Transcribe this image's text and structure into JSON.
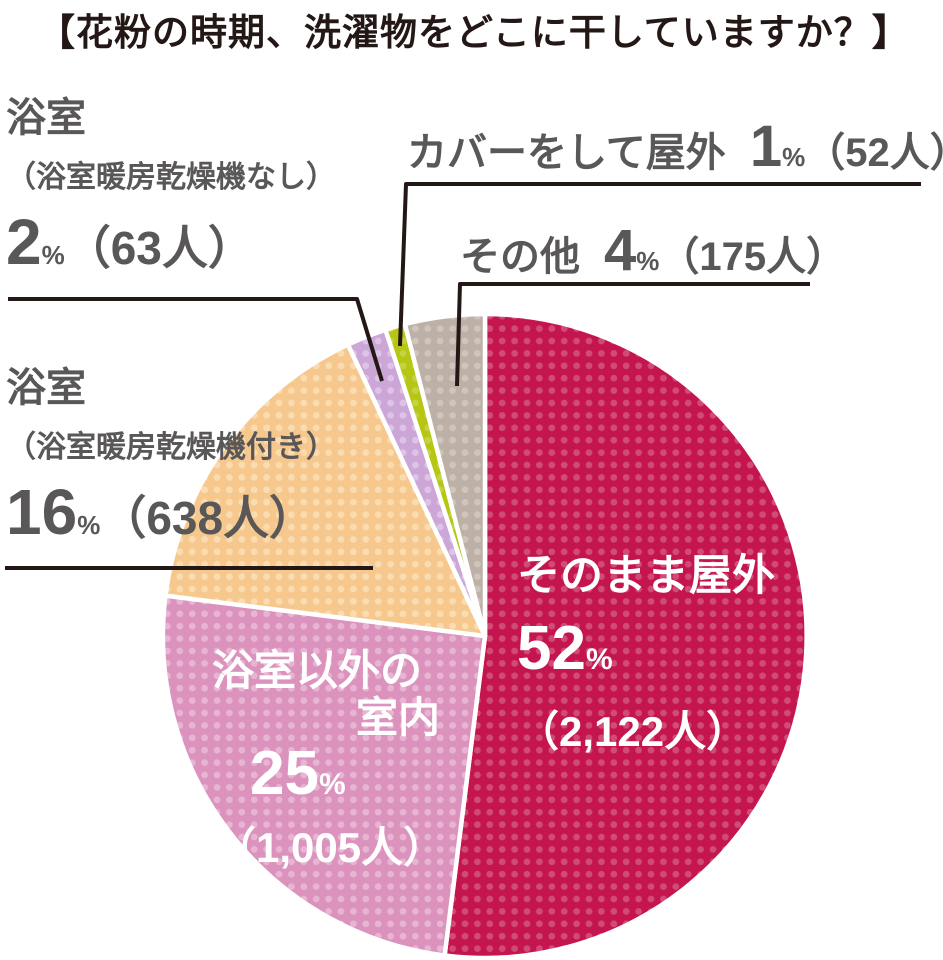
{
  "title": "【花粉の時期、洗濯物をどこに干していますか？】",
  "colors": {
    "background": "#ffffff",
    "title_text": "#231815",
    "label_text": "#595757",
    "slice_label_text": "#ffffff",
    "leader_line": "#231815",
    "slice_border": "#ffffff"
  },
  "chart_data": {
    "type": "pie",
    "title": "花粉の時期、洗濯物をどこに干していますか？",
    "start_angle_deg": 0,
    "direction": "clockwise",
    "value_unit": "人",
    "slices": [
      {
        "label": "そのまま屋外",
        "percent": 52,
        "count": 2122,
        "color": "#c4154e",
        "dot_color": "#d04b75"
      },
      {
        "label": "浴室以外の室内",
        "percent": 25,
        "count": 1005,
        "color": "#db93bd",
        "dot_color": "#e7b4d1"
      },
      {
        "label": "浴室（浴室暖房乾燥機付き）",
        "percent": 16,
        "count": 638,
        "color": "#f7c88d",
        "dot_color": "#fadcb1"
      },
      {
        "label": "浴室（浴室暖房乾燥機なし）",
        "percent": 2,
        "count": 63,
        "color": "#cda6d8",
        "dot_color": "#ddc4e7"
      },
      {
        "label": "カバーをして屋外",
        "percent": 1,
        "count": 52,
        "color": "#b6c613",
        "dot_color": "#c5d244"
      },
      {
        "label": "その他",
        "percent": 4,
        "count": 175,
        "color": "#bdb1a7",
        "dot_color": "#cfc5bb"
      }
    ]
  },
  "labels": {
    "bath_no_dryer": {
      "name": "浴室",
      "sub": "（浴室暖房乾燥機なし）",
      "value": "2",
      "percent_sign": "%",
      "count": "（63人）"
    },
    "cover_outdoor": {
      "name": "カバーをして屋外",
      "value": "1",
      "percent_sign": "%",
      "count": "（52人）"
    },
    "other": {
      "name": "その他",
      "value": "4",
      "percent_sign": "%",
      "count": "（175人）"
    },
    "bath_with_dryer": {
      "name": "浴室",
      "sub": "（浴室暖房乾燥機付き）",
      "value": "16",
      "percent_sign": "%",
      "count": "（638人）"
    },
    "outdoor_as_is": {
      "name": "そのまま屋外",
      "value": "52",
      "percent_sign": "%",
      "count": "（2,122人）"
    },
    "indoor_non_bath": {
      "name_line1": "浴室以外の",
      "name_line2": "室内",
      "value": "25",
      "percent_sign": "%",
      "count": "（1,005人）"
    }
  }
}
